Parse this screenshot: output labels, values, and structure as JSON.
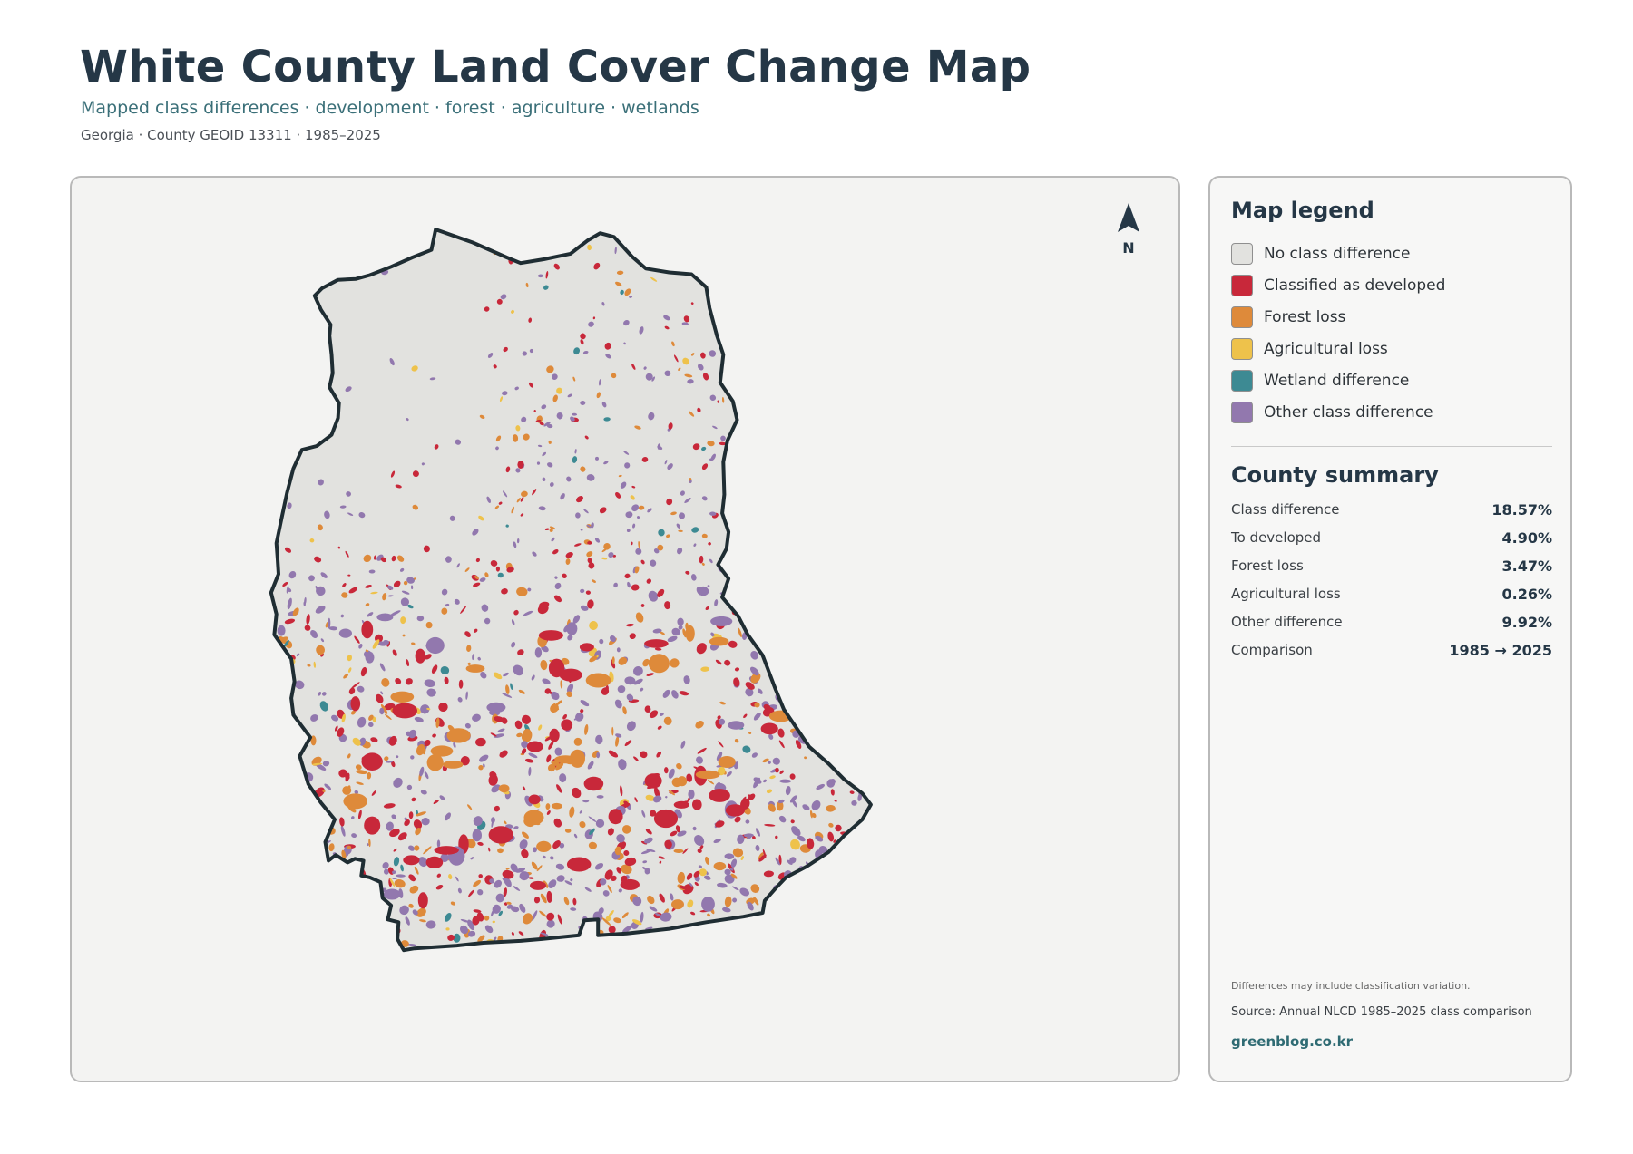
{
  "header": {
    "title": "White County Land Cover Change Map",
    "subtitle": "Mapped class differences · development · forest · agriculture · wetlands",
    "meta": "Georgia · County GEOID 13311 · 1985–2025"
  },
  "north_arrow": {
    "label": "N",
    "icon": "north-arrow-icon"
  },
  "legend": {
    "heading": "Map legend",
    "items": [
      {
        "label": "No class difference",
        "color": "#e2e2df"
      },
      {
        "label": "Classified as developed",
        "color": "#c8283a"
      },
      {
        "label": "Forest loss",
        "color": "#de8a3a"
      },
      {
        "label": "Agricultural loss",
        "color": "#eec24b"
      },
      {
        "label": "Wetland difference",
        "color": "#3d8a93"
      },
      {
        "label": "Other class difference",
        "color": "#9278ae"
      }
    ]
  },
  "summary": {
    "heading": "County summary",
    "rows": [
      {
        "label": "Class difference",
        "value": "18.57%"
      },
      {
        "label": "To developed",
        "value": "4.90%"
      },
      {
        "label": "Forest loss",
        "value": "3.47%"
      },
      {
        "label": "Agricultural loss",
        "value": "0.26%"
      },
      {
        "label": "Other difference",
        "value": "9.92%"
      },
      {
        "label": "Comparison",
        "value": "1985 → 2025"
      }
    ]
  },
  "footer": {
    "note": "Differences may include classification variation.",
    "source": "Source: Annual NLCD 1985–2025 class comparison",
    "brand": "greenblog.co.kr"
  }
}
